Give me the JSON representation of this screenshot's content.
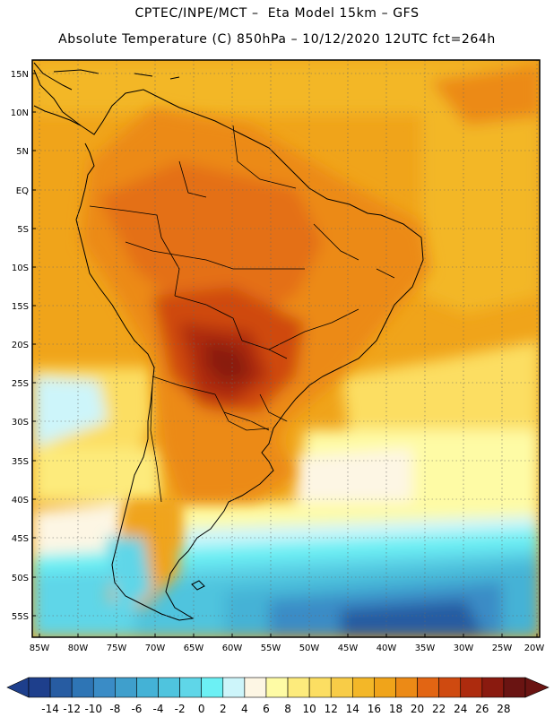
{
  "header": {
    "title_line1": "CPTEC/INPE/MCT –  Eta Model 15km – GFS",
    "title_line2": "Absolute Temperature (C) 850hPa – 10/12/2020 12UTC fct=264h"
  },
  "map": {
    "lat_labels": [
      "15N",
      "10N",
      "5N",
      "EQ",
      "5S",
      "10S",
      "15S",
      "20S",
      "25S",
      "30S",
      "35S",
      "40S",
      "45S",
      "50S",
      "55S"
    ],
    "lon_labels": [
      "85W",
      "80W",
      "75W",
      "70W",
      "65W",
      "60W",
      "55W",
      "50W",
      "45W",
      "40W",
      "35W",
      "30W",
      "25W",
      "20W"
    ],
    "extent": {
      "lon_west": -85,
      "lon_east": -20,
      "lat_north": 15,
      "lat_south": -55
    }
  },
  "colorbar": {
    "labels": [
      "-14",
      "-12",
      "-10",
      "-8",
      "-6",
      "-4",
      "-2",
      "0",
      "2",
      "4",
      "6",
      "8",
      "10",
      "12",
      "14",
      "16",
      "18",
      "20",
      "22",
      "24",
      "26",
      "28"
    ],
    "colors": [
      "#1e3f8c",
      "#275ca2",
      "#2e75b5",
      "#3a8cc6",
      "#3f9fcc",
      "#44b2d6",
      "#4fc4de",
      "#5fd6e8",
      "#6cf0f4",
      "#cdf5fa",
      "#fdf6e4",
      "#fefba5",
      "#fdeb7c",
      "#fcde62",
      "#f8cc47",
      "#f3b728",
      "#f0a41a",
      "#ec8a16",
      "#e26513",
      "#cf4a10",
      "#ad2b0e",
      "#8a1a0f",
      "#6a1412"
    ],
    "left_arrow_color": "#1e3f8c",
    "right_arrow_color": "#6a1412"
  }
}
